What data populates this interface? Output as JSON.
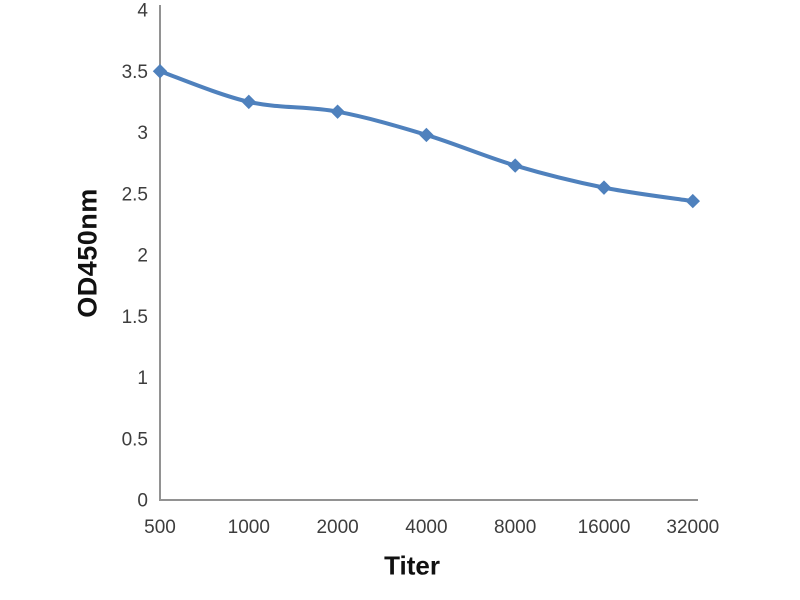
{
  "chart_data": {
    "type": "line",
    "title": "",
    "xlabel": "Titer",
    "ylabel": "OD450nm",
    "categories": [
      "500",
      "1000",
      "2000",
      "4000",
      "8000",
      "16000",
      "32000"
    ],
    "series": [
      {
        "name": "OD450nm",
        "values": [
          3.5,
          3.25,
          3.17,
          2.98,
          2.73,
          2.55,
          2.44
        ],
        "color": "#4f81bd",
        "marker": "diamond",
        "smooth": true
      }
    ],
    "ylim": [
      0,
      4
    ],
    "ytick_step": 0.5,
    "y_tick_labels": [
      "0",
      "0.5",
      "1",
      "1.5",
      "2",
      "2.5",
      "3",
      "3.5",
      "4"
    ],
    "grid": false,
    "legend": "none",
    "axis_color": "#929292",
    "tick_label_color": "#3d3d3d"
  }
}
